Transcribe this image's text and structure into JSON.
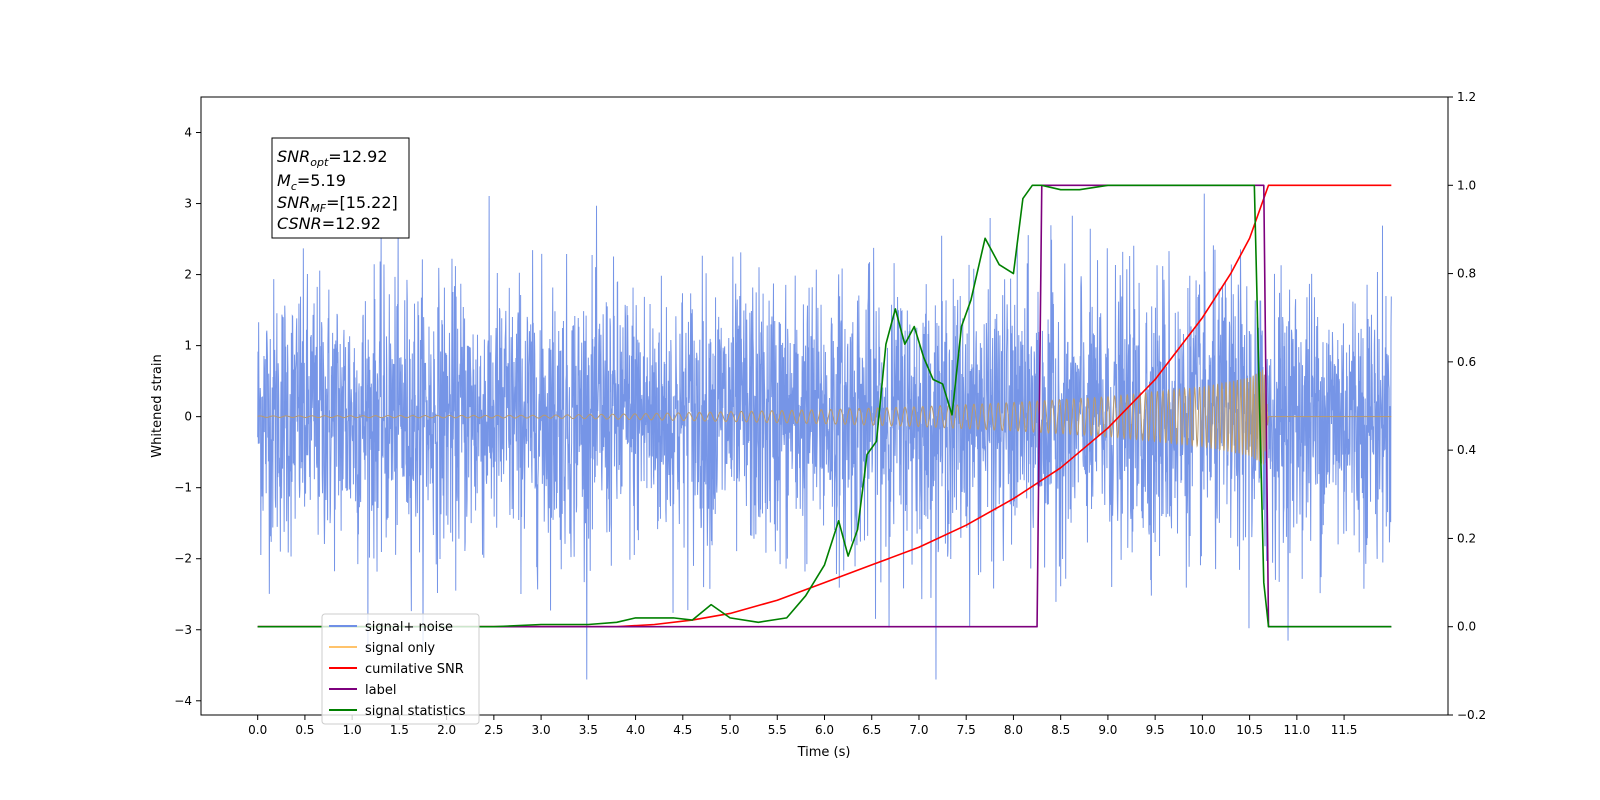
{
  "chart_data": {
    "type": "line",
    "xlabel": "Time (s)",
    "ylabel": "Whitened strain",
    "xlim": [
      -0.6,
      12.6
    ],
    "ylim": [
      -4.2,
      4.5
    ],
    "y2lim": [
      -0.2,
      1.2
    ],
    "xticks": [
      "0.0",
      "0.5",
      "1.0",
      "1.5",
      "2.0",
      "2.5",
      "3.0",
      "3.5",
      "4.0",
      "4.5",
      "5.0",
      "5.5",
      "6.0",
      "6.5",
      "7.0",
      "7.5",
      "8.0",
      "8.5",
      "9.0",
      "9.5",
      "10.0",
      "10.5",
      "11.0",
      "11.5"
    ],
    "yticks": [
      "4",
      "3",
      "2",
      "1",
      "0",
      "−1",
      "−2",
      "−3",
      "−4"
    ],
    "y2ticks": [
      "1.2",
      "1.0",
      "0.8",
      "0.6",
      "0.4",
      "0.2",
      "0.0",
      "−0.2"
    ],
    "grid": false,
    "legend_position": "lower-left",
    "colors": {
      "signal_noise": "#6f8fe6",
      "signal_only": "#b99a6e",
      "signal_only_legend": "#ffc36b",
      "cumulative_snr": "#ff0000",
      "label": "#7d007d",
      "signal_statistics": "#008000"
    },
    "annotation": {
      "snr_opt_label": "SNR",
      "snr_opt_sub": "opt",
      "snr_opt_value": "=12.92",
      "mc_label": "M",
      "mc_sub": "c",
      "mc_value": "=5.19",
      "snr_mf_label": "SNR",
      "snr_mf_sub": "MF",
      "snr_mf_value": "=[15.22]",
      "csnr_label": "CSNR",
      "csnr_value": "=12.92"
    },
    "series": [
      {
        "name": "signal+ noise",
        "axis": "left",
        "description_range": [
          -3.7,
          4.1
        ],
        "t_range": [
          0.0,
          12.0
        ]
      },
      {
        "name": "signal only",
        "axis": "left",
        "envelope": {
          "t": [
            0,
            3,
            4,
            5,
            6,
            7,
            8,
            9,
            10,
            10.5,
            10.65,
            10.7,
            12
          ],
          "amp": [
            0.01,
            0.02,
            0.04,
            0.07,
            0.1,
            0.14,
            0.2,
            0.28,
            0.42,
            0.55,
            0.68,
            0.0,
            0.0
          ]
        }
      },
      {
        "name": "cumilative SNR",
        "axis": "right",
        "t": [
          0.0,
          3.8,
          4.2,
          4.6,
          5.0,
          5.5,
          6.0,
          6.5,
          7.0,
          7.5,
          8.0,
          8.5,
          9.0,
          9.5,
          10.0,
          10.3,
          10.5,
          10.65,
          10.7,
          12.0
        ],
        "values": [
          0.0,
          0.0,
          0.005,
          0.015,
          0.03,
          0.06,
          0.1,
          0.14,
          0.18,
          0.23,
          0.29,
          0.36,
          0.45,
          0.56,
          0.7,
          0.8,
          0.88,
          0.97,
          1.0,
          1.0
        ]
      },
      {
        "name": "label",
        "axis": "right",
        "t": [
          0.0,
          8.25,
          8.3,
          10.65,
          10.7,
          12.0
        ],
        "values": [
          0.0,
          0.0,
          1.0,
          1.0,
          0.0,
          0.0
        ]
      },
      {
        "name": "signal statistics",
        "axis": "right",
        "t": [
          0.0,
          2.5,
          3.0,
          3.5,
          3.8,
          4.0,
          4.2,
          4.4,
          4.6,
          4.8,
          5.0,
          5.3,
          5.6,
          5.8,
          6.0,
          6.15,
          6.25,
          6.35,
          6.45,
          6.55,
          6.65,
          6.75,
          6.85,
          6.95,
          7.05,
          7.15,
          7.25,
          7.35,
          7.45,
          7.55,
          7.7,
          7.85,
          8.0,
          8.1,
          8.2,
          8.3,
          8.5,
          8.7,
          9.0,
          10.0,
          10.55,
          10.65,
          10.7,
          12.0
        ],
        "values": [
          0.0,
          0.0,
          0.005,
          0.005,
          0.01,
          0.02,
          0.02,
          0.02,
          0.015,
          0.05,
          0.02,
          0.01,
          0.02,
          0.07,
          0.14,
          0.24,
          0.16,
          0.22,
          0.39,
          0.42,
          0.64,
          0.72,
          0.64,
          0.68,
          0.61,
          0.56,
          0.55,
          0.48,
          0.68,
          0.74,
          0.88,
          0.82,
          0.8,
          0.97,
          1.0,
          1.0,
          0.99,
          0.99,
          1.0,
          1.0,
          1.0,
          0.1,
          0.0,
          0.0
        ]
      }
    ]
  }
}
